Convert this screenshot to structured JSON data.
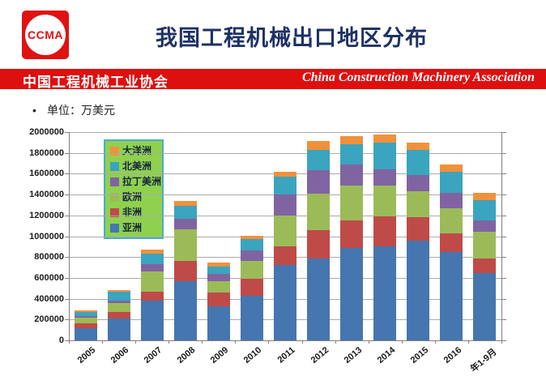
{
  "logo": {
    "text": "CCMA"
  },
  "header": {
    "title": "我国工程机械出口地区分布"
  },
  "banner": {
    "cn": "中国工程机械工业协会",
    "en": "China Construction Machinery Association",
    "bg": "#de0f0f"
  },
  "unit_note": {
    "bullet": "•",
    "text": "单位：万美元"
  },
  "chart_data": {
    "type": "bar",
    "stacked": true,
    "title": "",
    "xlabel": "",
    "ylabel": "",
    "unit": "万美元",
    "ylim": [
      0,
      2000000
    ],
    "ytick_step": 200000,
    "ytick_labels": [
      "0",
      "200000",
      "400000",
      "600000",
      "800000",
      "1000000",
      "1200000",
      "1400000",
      "1600000",
      "1800000",
      "2000000"
    ],
    "grid": true,
    "legend_position": "upper-left-inside",
    "legend_bg": "#8fd14f",
    "legend_border": "#4bacc6",
    "legend_order": [
      "大洋洲",
      "北美洲",
      "拉丁美洲",
      "欧洲",
      "非洲",
      "亚洲"
    ],
    "categories": [
      "2005",
      "2006",
      "2007",
      "2008",
      "2009",
      "2010",
      "2011",
      "2012",
      "2013",
      "2014",
      "2015",
      "2016",
      "年1-9月"
    ],
    "series": [
      {
        "name": "亚洲",
        "color": "#4576b0",
        "values": [
          115000,
          210000,
          385000,
          570000,
          325000,
          425000,
          720000,
          785000,
          890000,
          900000,
          955000,
          850000,
          645000
        ]
      },
      {
        "name": "非洲",
        "color": "#be4b48",
        "values": [
          45000,
          60000,
          80000,
          195000,
          135000,
          170000,
          180000,
          270000,
          260000,
          290000,
          230000,
          180000,
          140000
        ]
      },
      {
        "name": "欧洲",
        "color": "#9bbb59",
        "values": [
          60000,
          85000,
          200000,
          305000,
          110000,
          170000,
          295000,
          350000,
          335000,
          300000,
          250000,
          240000,
          260000
        ]
      },
      {
        "name": "拉丁美洲",
        "color": "#8064a2",
        "values": [
          15000,
          30000,
          65000,
          95000,
          65000,
          100000,
          205000,
          230000,
          205000,
          155000,
          155000,
          145000,
          105000
        ]
      },
      {
        "name": "北美洲",
        "color": "#3ba4be",
        "values": [
          35000,
          80000,
          105000,
          130000,
          70000,
          110000,
          170000,
          195000,
          195000,
          255000,
          240000,
          205000,
          200000
        ]
      },
      {
        "name": "大洋洲",
        "color": "#f0913b",
        "values": [
          15000,
          20000,
          35000,
          45000,
          40000,
          30000,
          50000,
          85000,
          75000,
          80000,
          70000,
          70000,
          70000
        ]
      }
    ]
  }
}
